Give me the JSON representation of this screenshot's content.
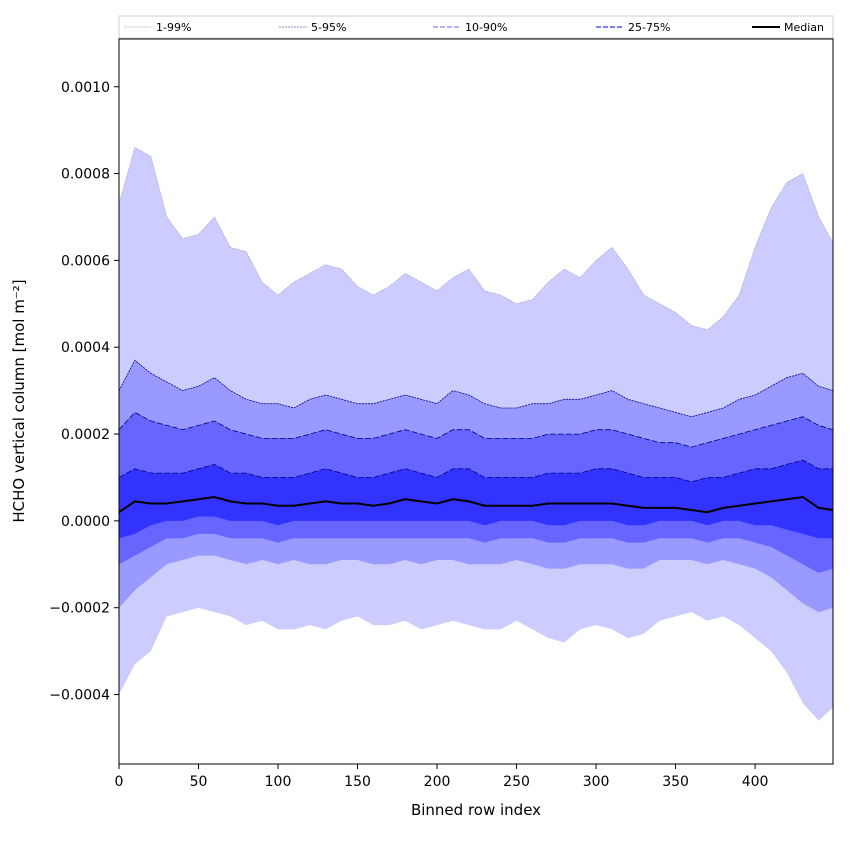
{
  "chart_data": {
    "type": "area",
    "xlabel": "Binned row index",
    "ylabel": "HCHO vertical column [mol m⁻²]",
    "xlim": [
      0,
      449
    ],
    "ylim": [
      -0.00056,
      0.00111
    ],
    "xticks": [
      0,
      50,
      100,
      150,
      200,
      250,
      300,
      350,
      400
    ],
    "xtick_labels": [
      "0",
      "50",
      "100",
      "150",
      "200",
      "250",
      "300",
      "350",
      "400"
    ],
    "yticks": [
      -0.0004,
      -0.0002,
      0.0,
      0.0002,
      0.0004,
      0.0006,
      0.0008,
      0.001
    ],
    "ytick_labels": [
      "−0.0004",
      "−0.0002",
      "0.0000",
      "0.0002",
      "0.0004",
      "0.0006",
      "0.0008",
      "0.0010"
    ],
    "grid": false,
    "legend_placement": "top",
    "bands": [
      {
        "name": "1-99%",
        "fill": "#ccccff",
        "line": "#9999cc",
        "dash": "1,1",
        "x": [
          0,
          10,
          20,
          30,
          40,
          50,
          60,
          70,
          80,
          90,
          100,
          110,
          120,
          130,
          140,
          150,
          160,
          170,
          180,
          190,
          200,
          210,
          220,
          230,
          240,
          250,
          260,
          270,
          280,
          290,
          300,
          310,
          320,
          330,
          340,
          350,
          360,
          370,
          380,
          390,
          400,
          410,
          420,
          430,
          440,
          449
        ],
        "upper": [
          0.00073,
          0.00086,
          0.00084,
          0.0007,
          0.00065,
          0.00066,
          0.0007,
          0.00063,
          0.00062,
          0.00055,
          0.00052,
          0.00055,
          0.00057,
          0.00059,
          0.00058,
          0.00054,
          0.00052,
          0.00054,
          0.00057,
          0.00055,
          0.00053,
          0.00056,
          0.00058,
          0.00053,
          0.00052,
          0.0005,
          0.00051,
          0.00055,
          0.00058,
          0.00056,
          0.0006,
          0.00063,
          0.00058,
          0.00052,
          0.0005,
          0.00048,
          0.00045,
          0.00044,
          0.00047,
          0.00052,
          0.00063,
          0.00072,
          0.00078,
          0.0008,
          0.0007,
          0.00064
        ],
        "lower": [
          -0.0004,
          -0.00033,
          -0.0003,
          -0.00022,
          -0.00021,
          -0.0002,
          -0.00021,
          -0.00022,
          -0.00024,
          -0.00023,
          -0.00025,
          -0.00025,
          -0.00024,
          -0.00025,
          -0.00023,
          -0.00022,
          -0.00024,
          -0.00024,
          -0.00023,
          -0.00025,
          -0.00024,
          -0.00023,
          -0.00024,
          -0.00025,
          -0.00025,
          -0.00023,
          -0.00025,
          -0.00027,
          -0.00028,
          -0.00025,
          -0.00024,
          -0.00025,
          -0.00027,
          -0.00026,
          -0.00023,
          -0.00022,
          -0.00021,
          -0.00023,
          -0.00022,
          -0.00024,
          -0.00027,
          -0.0003,
          -0.00035,
          -0.00042,
          -0.00046,
          -0.00043
        ]
      },
      {
        "name": "5-95%",
        "fill": "#9999ff",
        "line": "#000080",
        "dash": "2,1",
        "x": [
          0,
          10,
          20,
          30,
          40,
          50,
          60,
          70,
          80,
          90,
          100,
          110,
          120,
          130,
          140,
          150,
          160,
          170,
          180,
          190,
          200,
          210,
          220,
          230,
          240,
          250,
          260,
          270,
          280,
          290,
          300,
          310,
          320,
          330,
          340,
          350,
          360,
          370,
          380,
          390,
          400,
          410,
          420,
          430,
          440,
          449
        ],
        "upper": [
          0.0003,
          0.00037,
          0.00034,
          0.00032,
          0.0003,
          0.00031,
          0.00033,
          0.0003,
          0.00028,
          0.00027,
          0.00027,
          0.00026,
          0.00028,
          0.00029,
          0.00028,
          0.00027,
          0.00027,
          0.00028,
          0.00029,
          0.00028,
          0.00027,
          0.0003,
          0.00029,
          0.00027,
          0.00026,
          0.00026,
          0.00027,
          0.00027,
          0.00028,
          0.00028,
          0.00029,
          0.0003,
          0.00028,
          0.00027,
          0.00026,
          0.00025,
          0.00024,
          0.00025,
          0.00026,
          0.00028,
          0.00029,
          0.00031,
          0.00033,
          0.00034,
          0.00031,
          0.0003
        ],
        "lower": [
          -0.0002,
          -0.00016,
          -0.00013,
          -0.0001,
          -9e-05,
          -8e-05,
          -8e-05,
          -9e-05,
          -0.0001,
          -9e-05,
          -0.0001,
          -9e-05,
          -0.0001,
          -0.0001,
          -9e-05,
          -9e-05,
          -0.0001,
          -0.0001,
          -9e-05,
          -0.0001,
          -9e-05,
          -9e-05,
          -0.0001,
          -0.0001,
          -0.0001,
          -9e-05,
          -0.0001,
          -0.00011,
          -0.00011,
          -0.0001,
          -0.0001,
          -0.0001,
          -0.00011,
          -0.00011,
          -9e-05,
          -9e-05,
          -9e-05,
          -0.0001,
          -9e-05,
          -0.0001,
          -0.00011,
          -0.00013,
          -0.00016,
          -0.00019,
          -0.00021,
          -0.0002
        ]
      },
      {
        "name": "10-90%",
        "fill": "#6666ff",
        "line": "#000080",
        "dash": "6,2",
        "x": [
          0,
          10,
          20,
          30,
          40,
          50,
          60,
          70,
          80,
          90,
          100,
          110,
          120,
          130,
          140,
          150,
          160,
          170,
          180,
          190,
          200,
          210,
          220,
          230,
          240,
          250,
          260,
          270,
          280,
          290,
          300,
          310,
          320,
          330,
          340,
          350,
          360,
          370,
          380,
          390,
          400,
          410,
          420,
          430,
          440,
          449
        ],
        "upper": [
          0.00021,
          0.00025,
          0.00023,
          0.00022,
          0.00021,
          0.00022,
          0.00023,
          0.00021,
          0.0002,
          0.00019,
          0.00019,
          0.00019,
          0.0002,
          0.00021,
          0.0002,
          0.00019,
          0.00019,
          0.0002,
          0.00021,
          0.0002,
          0.00019,
          0.00021,
          0.00021,
          0.00019,
          0.00019,
          0.00019,
          0.00019,
          0.0002,
          0.0002,
          0.0002,
          0.00021,
          0.00021,
          0.0002,
          0.00019,
          0.00018,
          0.00018,
          0.00017,
          0.00018,
          0.00019,
          0.0002,
          0.00021,
          0.00022,
          0.00023,
          0.00024,
          0.00022,
          0.00021
        ],
        "lower": [
          -0.0001,
          -8e-05,
          -6e-05,
          -4e-05,
          -4e-05,
          -3e-05,
          -3e-05,
          -4e-05,
          -4e-05,
          -4e-05,
          -5e-05,
          -4e-05,
          -4e-05,
          -4e-05,
          -4e-05,
          -4e-05,
          -4e-05,
          -4e-05,
          -4e-05,
          -4e-05,
          -4e-05,
          -4e-05,
          -4e-05,
          -5e-05,
          -4e-05,
          -4e-05,
          -4e-05,
          -5e-05,
          -5e-05,
          -4e-05,
          -4e-05,
          -4e-05,
          -5e-05,
          -5e-05,
          -4e-05,
          -4e-05,
          -4e-05,
          -5e-05,
          -4e-05,
          -4e-05,
          -5e-05,
          -6e-05,
          -8e-05,
          -0.0001,
          -0.00012,
          -0.00011
        ]
      },
      {
        "name": "25-75%",
        "fill": "#3333ff",
        "line": "#000080",
        "dash": "6,2",
        "x": [
          0,
          10,
          20,
          30,
          40,
          50,
          60,
          70,
          80,
          90,
          100,
          110,
          120,
          130,
          140,
          150,
          160,
          170,
          180,
          190,
          200,
          210,
          220,
          230,
          240,
          250,
          260,
          270,
          280,
          290,
          300,
          310,
          320,
          330,
          340,
          350,
          360,
          370,
          380,
          390,
          400,
          410,
          420,
          430,
          440,
          449
        ],
        "upper": [
          0.0001,
          0.00012,
          0.00011,
          0.00011,
          0.00011,
          0.00012,
          0.00013,
          0.00011,
          0.00011,
          0.0001,
          0.0001,
          0.0001,
          0.00011,
          0.00012,
          0.00011,
          0.0001,
          0.0001,
          0.00011,
          0.00012,
          0.00011,
          0.0001,
          0.00012,
          0.00012,
          0.0001,
          0.0001,
          0.0001,
          0.0001,
          0.00011,
          0.00011,
          0.00011,
          0.00012,
          0.00012,
          0.00011,
          0.0001,
          0.0001,
          0.0001,
          9e-05,
          0.0001,
          0.0001,
          0.00011,
          0.00012,
          0.00012,
          0.00013,
          0.00014,
          0.00012,
          0.00012
        ],
        "lower": [
          -4e-05,
          -3e-05,
          -1e-05,
          0.0,
          0.0,
          1e-05,
          1e-05,
          0.0,
          0.0,
          0.0,
          -1e-05,
          0.0,
          0.0,
          0.0,
          0.0,
          0.0,
          0.0,
          0.0,
          0.0,
          0.0,
          0.0,
          0.0,
          0.0,
          -1e-05,
          0.0,
          0.0,
          0.0,
          -1e-05,
          -1e-05,
          0.0,
          0.0,
          0.0,
          -1e-05,
          -1e-05,
          0.0,
          0.0,
          0.0,
          -1e-05,
          0.0,
          0.0,
          -1e-05,
          -1e-05,
          -2e-05,
          -3e-05,
          -4e-05,
          -4e-05
        ]
      }
    ],
    "median": {
      "name": "Median",
      "color": "#000000",
      "x": [
        0,
        10,
        20,
        30,
        40,
        50,
        60,
        70,
        80,
        90,
        100,
        110,
        120,
        130,
        140,
        150,
        160,
        170,
        180,
        190,
        200,
        210,
        220,
        230,
        240,
        250,
        260,
        270,
        280,
        290,
        300,
        310,
        320,
        330,
        340,
        350,
        360,
        370,
        380,
        390,
        400,
        410,
        420,
        430,
        440,
        449
      ],
      "values": [
        2e-05,
        4.5e-05,
        4e-05,
        4e-05,
        4.5e-05,
        5e-05,
        5.5e-05,
        4.5e-05,
        4e-05,
        4e-05,
        3.5e-05,
        3.5e-05,
        4e-05,
        4.5e-05,
        4e-05,
        4e-05,
        3.5e-05,
        4e-05,
        5e-05,
        4.5e-05,
        4e-05,
        5e-05,
        4.5e-05,
        3.5e-05,
        3.5e-05,
        3.5e-05,
        3.5e-05,
        4e-05,
        4e-05,
        4e-05,
        4e-05,
        4e-05,
        3.5e-05,
        3e-05,
        3e-05,
        3e-05,
        2.5e-05,
        2e-05,
        3e-05,
        3.5e-05,
        4e-05,
        4.5e-05,
        5e-05,
        5.5e-05,
        3e-05,
        2.5e-05
      ]
    },
    "legend": [
      {
        "label": "1-99%",
        "color": "#9999cc",
        "dash": "1,1",
        "width": 0.8
      },
      {
        "label": "5-95%",
        "color": "#6666cc",
        "dash": "2,1",
        "width": 0.8
      },
      {
        "label": "10-90%",
        "color": "#6666ff",
        "dash": "5,2",
        "width": 1.0
      },
      {
        "label": "25-75%",
        "color": "#3333ff",
        "dash": "5,2",
        "width": 1.2
      },
      {
        "label": "Median",
        "color": "#000000",
        "dash": "",
        "width": 2.0
      }
    ]
  }
}
